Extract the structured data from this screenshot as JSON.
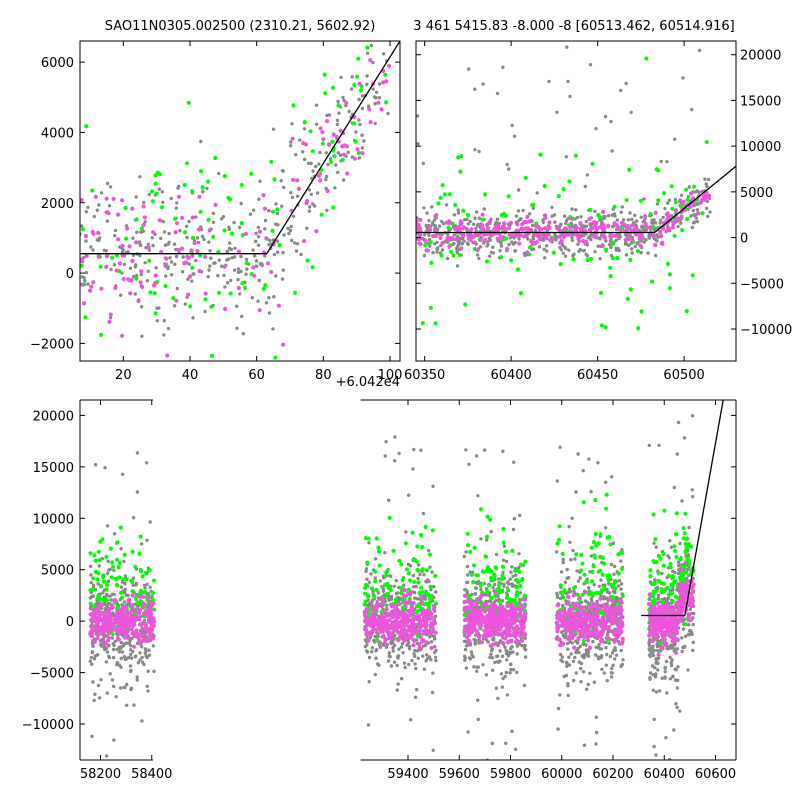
{
  "chart_data": [
    {
      "type": "scatter",
      "title": "SAO11N0305.002500 (2310.21, 5602.92)",
      "xlim": [
        7,
        103
      ],
      "ylim": [
        -2500,
        6600
      ],
      "x_offset_label": "+6.042e4",
      "xticks": [
        20,
        40,
        60,
        80,
        100
      ],
      "xtick_labels": [
        "20",
        "40",
        "60",
        "80",
        "100"
      ],
      "yticks": [
        -2000,
        0,
        2000,
        4000,
        6000
      ],
      "ytick_labels": [
        "−2000",
        "0",
        "2000",
        "4000",
        "6000"
      ],
      "series": [
        {
          "color": "#888888",
          "count": 380,
          "x_range": [
            7,
            100
          ],
          "y_center": 1000,
          "y_spread": 1500
        },
        {
          "color": "#00ff00",
          "count": 120,
          "x_range": [
            7,
            100
          ],
          "y_center": 1500,
          "y_spread": 1800
        },
        {
          "color": "#ee55dd",
          "count": 150,
          "x_range": [
            7,
            100
          ],
          "y_center": 800,
          "y_spread": 1300
        }
      ],
      "fit_line": [
        [
          7,
          550
        ],
        [
          63,
          550
        ],
        [
          103,
          6600
        ]
      ],
      "fit_color": "#000000"
    },
    {
      "type": "scatter",
      "title": "3 461 5415.83 -8.000 -8 [60513.462, 60514.916]",
      "xlim": [
        60345,
        60530
      ],
      "ylim": [
        -13500,
        21500
      ],
      "xticks": [
        60350,
        60400,
        60450,
        60500
      ],
      "xtick_labels": [
        "60350",
        "60400",
        "60450",
        "60500"
      ],
      "yticks": [
        -10000,
        -5000,
        0,
        5000,
        10000,
        15000,
        20000
      ],
      "ytick_labels": [
        "−10000",
        "−5000",
        "0",
        "5000",
        "10000",
        "15000",
        "20000"
      ],
      "series": [
        {
          "color": "#888888",
          "count": 700,
          "x_range": [
            60345,
            60515
          ],
          "y_center": 500,
          "y_spread": 1200
        },
        {
          "color": "#00ff00",
          "count": 120,
          "x_range": [
            60345,
            60515
          ],
          "y_center": 1500,
          "y_spread": 5000
        },
        {
          "color": "#ee55dd",
          "count": 260,
          "x_range": [
            60345,
            60515
          ],
          "y_center": 300,
          "y_spread": 800
        }
      ],
      "fit_line": [
        [
          60345,
          550
        ],
        [
          60483,
          550
        ],
        [
          60530,
          7800
        ]
      ],
      "fit_color": "#000000"
    },
    {
      "type": "scatter",
      "xlim": [
        58120,
        60680
      ],
      "ylim": [
        -13500,
        21500
      ],
      "xticks": [
        58200,
        58400,
        59400,
        59600,
        59800,
        60000,
        60200,
        60400,
        60600
      ],
      "xtick_labels": [
        "58200",
        "58400",
        "59400",
        "59600",
        "59800",
        "60000",
        "60200",
        "60400",
        "60600"
      ],
      "yticks": [
        -10000,
        -5000,
        0,
        5000,
        10000,
        15000,
        20000
      ],
      "ytick_labels": [
        "−10000",
        "−5000",
        "0",
        "5000",
        "10000",
        "15000",
        "20000"
      ],
      "axis_break": "between 58400 and 59400",
      "season_x_ranges": [
        [
          58160,
          58410
        ],
        [
          59230,
          59510
        ],
        [
          59620,
          59860
        ],
        [
          59980,
          60240
        ],
        [
          60340,
          60515
        ]
      ],
      "series": [
        {
          "color": "#888888",
          "count": 2200,
          "y_center": 0,
          "y_spread": 2500
        },
        {
          "color": "#00ff00",
          "count": 550,
          "y_center": 3000,
          "y_spread": 4500
        },
        {
          "color": "#ee55dd",
          "count": 1400,
          "y_center": 0,
          "y_spread": 1000
        }
      ],
      "fit_line": [
        [
          60310,
          550
        ],
        [
          60480,
          550
        ],
        [
          60630,
          21500
        ]
      ],
      "fit_color": "#000000"
    }
  ]
}
